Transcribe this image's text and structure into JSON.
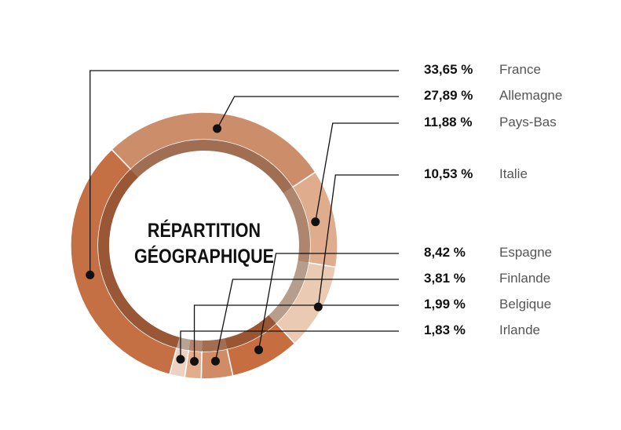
{
  "chart_data": {
    "type": "pie",
    "title": "RÉPARTITION GÉOGRAPHIQUE",
    "title_lines": [
      "RÉPARTITION",
      "GÉOGRAPHIQUE"
    ],
    "categories": [
      "France",
      "Allemagne",
      "Pays-Bas",
      "Italie",
      "Espagne",
      "Finlande",
      "Belgique",
      "Irlande"
    ],
    "values": [
      33.65,
      27.89,
      11.88,
      10.53,
      8.42,
      3.81,
      1.99,
      1.83
    ],
    "value_labels": [
      "33,65 %",
      "27,89 %",
      "11,88 %",
      "10,53 %",
      "8,42 %",
      "3,81 %",
      "1,99 %",
      "1,83 %"
    ],
    "colors": [
      "#c56f45",
      "#cc8d6a",
      "#dfac8d",
      "#ebcab4",
      "#c66e40",
      "#d18c66",
      "#e3ac8a",
      "#ecd2c2"
    ],
    "legend": "right"
  }
}
